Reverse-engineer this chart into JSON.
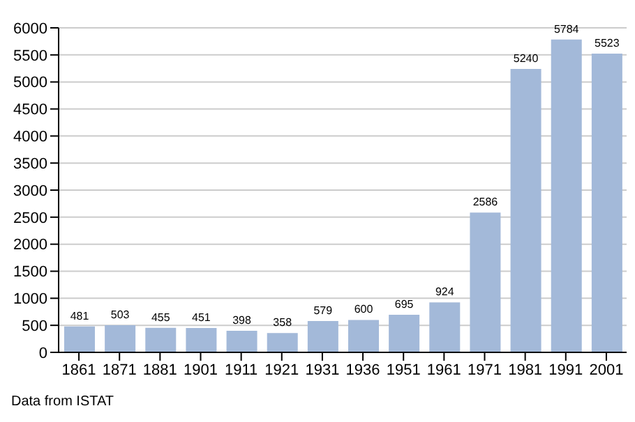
{
  "chart_data": {
    "type": "bar",
    "categories": [
      "1861",
      "1871",
      "1881",
      "1901",
      "1911",
      "1921",
      "1931",
      "1936",
      "1951",
      "1961",
      "1971",
      "1981",
      "1991",
      "2001"
    ],
    "values": [
      481,
      503,
      455,
      451,
      398,
      358,
      579,
      600,
      695,
      924,
      2586,
      5240,
      5784,
      5523
    ],
    "color": "#a3b9d9",
    "ylim": [
      0,
      6000
    ],
    "yticks": [
      0,
      500,
      1000,
      1500,
      2000,
      2500,
      3000,
      3500,
      4000,
      4500,
      5000,
      5500,
      6000
    ],
    "grid": "y",
    "data_labels": true,
    "annotations": [
      "Data from ISTAT"
    ]
  }
}
